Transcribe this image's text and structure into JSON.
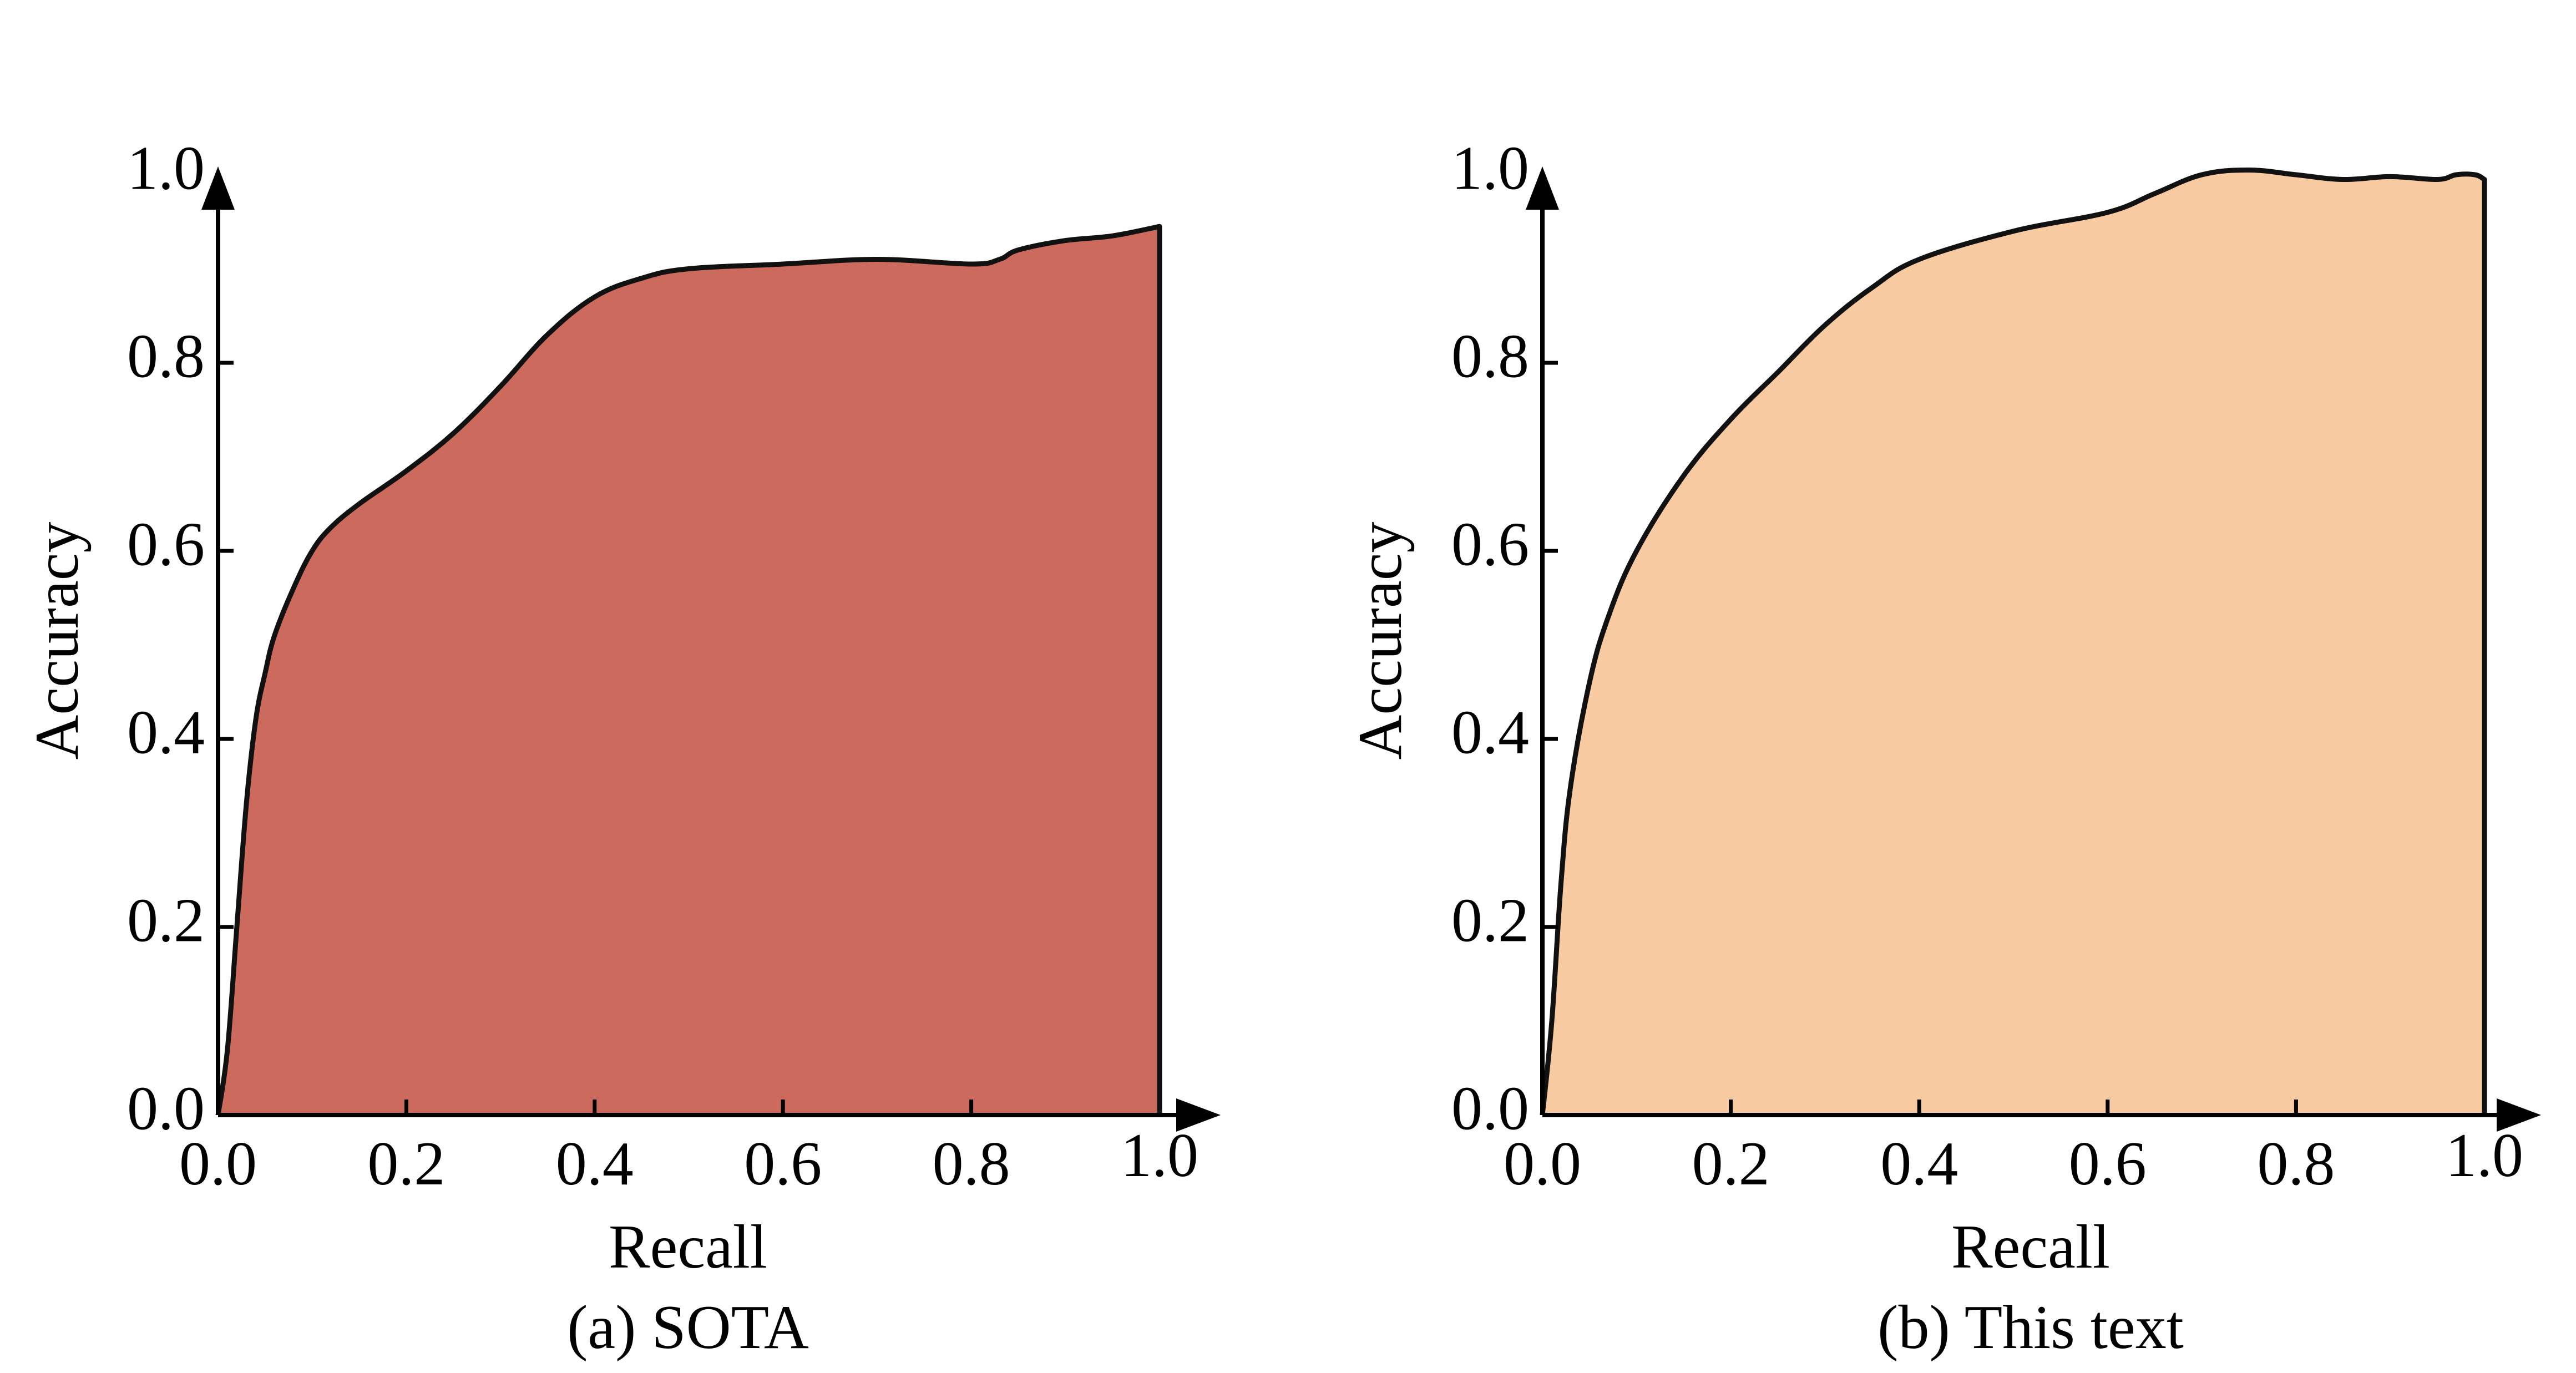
{
  "chart_data": [
    {
      "type": "area",
      "caption": "(a) SOTA",
      "xlabel": "Recall",
      "ylabel": "Accuracy",
      "xlim": [
        0,
        1
      ],
      "ylim": [
        0,
        1
      ],
      "xticks": [
        "0.0",
        "0.2",
        "0.4",
        "0.6",
        "0.8",
        "1.0"
      ],
      "yticks": [
        "0.0",
        "0.2",
        "0.4",
        "0.6",
        "0.8",
        "1.0"
      ],
      "grid": false,
      "fill_color": "#cd6a5e",
      "line_color": "#111111",
      "series": [
        {
          "x": [
            0.0,
            0.01,
            0.02,
            0.03,
            0.04,
            0.05,
            0.06,
            0.08,
            0.1,
            0.12,
            0.15,
            0.2,
            0.25,
            0.3,
            0.35,
            0.4,
            0.45,
            0.5,
            0.6,
            0.7,
            0.8,
            0.83,
            0.85,
            0.9,
            0.95,
            1.0
          ],
          "y": [
            0.0,
            0.07,
            0.2,
            0.33,
            0.42,
            0.47,
            0.51,
            0.56,
            0.6,
            0.625,
            0.65,
            0.685,
            0.725,
            0.775,
            0.83,
            0.87,
            0.89,
            0.9,
            0.905,
            0.91,
            0.905,
            0.91,
            0.92,
            0.93,
            0.935,
            0.945
          ]
        }
      ]
    },
    {
      "type": "area",
      "caption": "(b) This text",
      "xlabel": "Recall",
      "ylabel": "Accuracy",
      "xlim": [
        0,
        1
      ],
      "ylim": [
        0,
        1
      ],
      "xticks": [
        "0.0",
        "0.2",
        "0.4",
        "0.6",
        "0.8",
        "1.0"
      ],
      "yticks": [
        "0.0",
        "0.2",
        "0.4",
        "0.6",
        "0.8",
        "1.0"
      ],
      "grid": false,
      "fill_color": "#f8caa2",
      "line_color": "#111111",
      "series": [
        {
          "x": [
            0.0,
            0.01,
            0.02,
            0.03,
            0.05,
            0.07,
            0.1,
            0.15,
            0.2,
            0.25,
            0.3,
            0.35,
            0.4,
            0.5,
            0.6,
            0.65,
            0.7,
            0.75,
            0.8,
            0.85,
            0.9,
            0.95,
            0.97,
            0.99,
            1.0
          ],
          "y": [
            0.0,
            0.1,
            0.25,
            0.35,
            0.46,
            0.53,
            0.6,
            0.68,
            0.74,
            0.79,
            0.84,
            0.88,
            0.91,
            0.94,
            0.96,
            0.98,
            1.0,
            1.005,
            1.0,
            0.995,
            0.998,
            0.995,
            1.0,
            1.0,
            0.995
          ]
        }
      ]
    }
  ]
}
